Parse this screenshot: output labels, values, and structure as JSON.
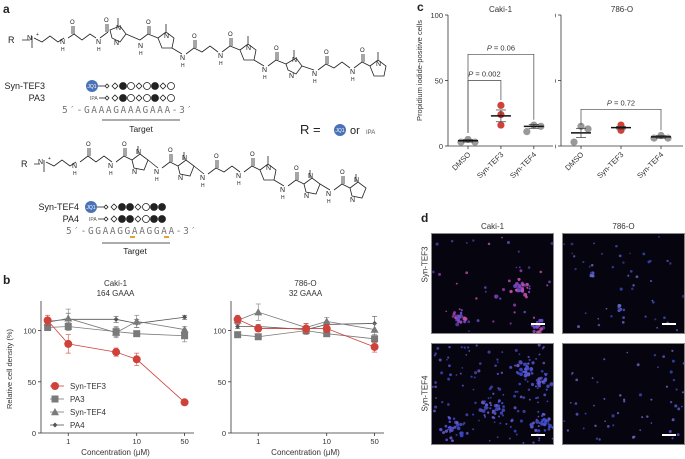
{
  "panels": {
    "a": {
      "letter": "a",
      "r_label": "R",
      "r_definition": {
        "prefix": "R =",
        "option1": "JQ1",
        "or": "or",
        "option2": "IPA"
      },
      "compound_top": {
        "rows": [
          {
            "name": "Syn-TEF3",
            "ligand": "JQ1"
          },
          {
            "name": "PA3",
            "ligand": "IPA"
          }
        ],
        "sequence": "5′-GAAAGAAAGAAA-3′",
        "target_label": "Target",
        "symbol_pattern": [
          "beta",
          "open-diamond",
          "filled-circle",
          "open-circle",
          "open-diamond",
          "open-circle",
          "filled-circle",
          "open-diamond",
          "open-circle"
        ]
      },
      "compound_bottom": {
        "rows": [
          {
            "name": "Syn-TEF4",
            "ligand": "JQ1"
          },
          {
            "name": "PA4",
            "ligand": "IPA"
          }
        ],
        "sequence": "5′-GGAAGGAAGGAA-3′",
        "target_label": "Target",
        "symbol_pattern": [
          "beta",
          "open-diamond",
          "filled-circle",
          "filled-circle",
          "open-diamond",
          "open-circle",
          "filled-circle",
          "filled-circle"
        ]
      }
    },
    "b": {
      "letter": "b"
    },
    "c": {
      "letter": "c"
    },
    "d": {
      "letter": "d",
      "col_labels": [
        "Caki-1",
        "786-O"
      ],
      "row_labels": [
        "Syn-TEF3",
        "Syn-TEF4"
      ]
    }
  },
  "colors": {
    "syn_tef3": "#d0413a",
    "gray_dark": "#555555",
    "gray_mid": "#7a7a7a",
    "gray_light": "#999999",
    "jq1_blue": "#4a72b8",
    "highlight_orange": "#e2a13a",
    "micro_bg": "#05040f"
  },
  "chart_data": [
    {
      "id": "b-caki1",
      "type": "line",
      "title": "Caki-1",
      "subtitle": "164 GAAA",
      "xlabel": "Concentration (μM)",
      "ylabel": "Relative cell density (%)",
      "xscale": "log",
      "x": [
        0.5,
        1,
        5,
        10,
        50
      ],
      "xticks": [
        1,
        10,
        50
      ],
      "yticks": [
        0,
        50,
        100
      ],
      "ylim": [
        0,
        125
      ],
      "legend": [
        "Syn-TEF3",
        "PA3",
        "Syn-TEF4",
        "PA4"
      ],
      "legend_position": "lower left",
      "series": [
        {
          "name": "Syn-TEF3",
          "marker": "circle",
          "values": [
            110,
            87,
            79,
            72,
            30
          ],
          "err": [
            5,
            9,
            4,
            6,
            1
          ]
        },
        {
          "name": "PA3",
          "marker": "square",
          "values": [
            103,
            104,
            99,
            97,
            95
          ],
          "err": [
            3,
            4,
            5,
            2,
            6
          ]
        },
        {
          "name": "Syn-TEF4",
          "marker": "triangle",
          "values": [
            108,
            112,
            98,
            109,
            101
          ],
          "err": [
            4,
            9,
            5,
            6,
            3
          ]
        },
        {
          "name": "PA4",
          "marker": "diamond",
          "values": [
            109,
            111,
            111,
            107,
            113
          ],
          "err": [
            3,
            6,
            3,
            4,
            2
          ]
        }
      ]
    },
    {
      "id": "b-786o",
      "type": "line",
      "title": "786-O",
      "subtitle": "32 GAAA",
      "xlabel": "Concentration (μM)",
      "ylabel": "",
      "xscale": "log",
      "x": [
        0.5,
        1,
        5,
        10,
        50
      ],
      "xticks": [
        1,
        10,
        50
      ],
      "yticks": [
        0,
        50,
        100
      ],
      "ylim": [
        0,
        125
      ],
      "series": [
        {
          "name": "Syn-TEF3",
          "marker": "circle",
          "values": [
            111,
            102,
            102,
            102,
            84
          ],
          "err": [
            4,
            3,
            5,
            4,
            5
          ]
        },
        {
          "name": "PA3",
          "marker": "square",
          "values": [
            96,
            94,
            100,
            97,
            92
          ],
          "err": [
            2,
            2,
            4,
            3,
            4
          ]
        },
        {
          "name": "Syn-TEF4",
          "marker": "triangle",
          "values": [
            110,
            118,
            103,
            109,
            101
          ],
          "err": [
            3,
            8,
            4,
            4,
            6
          ]
        },
        {
          "name": "PA4",
          "marker": "diamond",
          "values": [
            104,
            104,
            101,
            106,
            107
          ],
          "err": [
            2,
            2,
            3,
            3,
            7
          ]
        }
      ]
    },
    {
      "id": "c-caki1",
      "type": "scatter",
      "title": "Caki-1",
      "ylabel": "Propidium iodide-positive cells",
      "categories": [
        "DMSO",
        "Syn-TEF3",
        "Syn-TEF4"
      ],
      "yticks": [
        0,
        50,
        100
      ],
      "ylim": [
        0,
        100
      ],
      "points": [
        [
          3,
          5,
          3
        ],
        [
          16,
          24,
          31
        ],
        [
          11,
          16,
          15
        ]
      ],
      "means": [
        4,
        23,
        15
      ],
      "sem": [
        1,
        4.5,
        1.5
      ],
      "annotations": [
        {
          "text": "P = 0.002",
          "from": "DMSO",
          "to": "Syn-TEF3",
          "y": 50
        },
        {
          "text": "P = 0.06",
          "from": "DMSO",
          "to": "Syn-TEF4",
          "y": 70
        }
      ]
    },
    {
      "id": "c-786o",
      "type": "scatter",
      "title": "786-O",
      "ylabel": "",
      "categories": [
        "DMSO",
        "Syn-TEF3",
        "Syn-TEF4"
      ],
      "yticks": [
        0,
        50,
        100
      ],
      "ylim": [
        0,
        100
      ],
      "points": [
        [
          3,
          15,
          13
        ],
        [
          12,
          14,
          16
        ],
        [
          6,
          8,
          6
        ]
      ],
      "means": [
        10,
        14,
        7
      ],
      "sem": [
        3.5,
        1,
        1
      ],
      "annotations": [
        {
          "text": "P = 0.72",
          "from": "DMSO",
          "to": "Syn-TEF4",
          "y": 28
        }
      ]
    }
  ]
}
